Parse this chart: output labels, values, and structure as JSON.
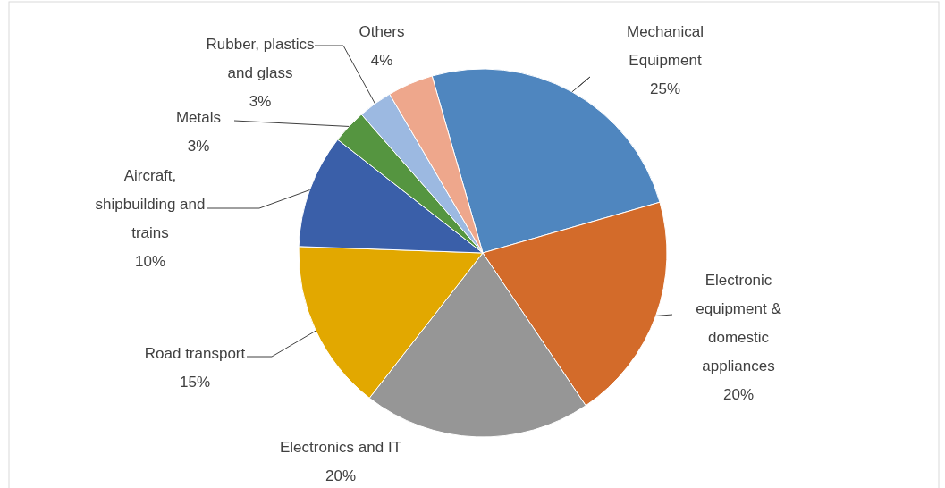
{
  "chart_data": {
    "type": "pie",
    "categories": [
      "Mechanical Equipment",
      "Electronic equipment & domestic appliances",
      "Electronics and IT",
      "Road transport",
      "Aircraft, shipbuilding and trains",
      "Metals",
      "Rubber, plastics and glass",
      "Others"
    ],
    "values": [
      25,
      20,
      20,
      15,
      10,
      3,
      3,
      4
    ],
    "colors": [
      "#4f86bf",
      "#d36b2a",
      "#969696",
      "#e2a800",
      "#3a5fa9",
      "#559540",
      "#9cb9e1",
      "#eea78c"
    ],
    "value_labels": [
      "25%",
      "20%",
      "20%",
      "15%",
      "10%",
      "3%",
      "3%",
      "4%"
    ]
  }
}
